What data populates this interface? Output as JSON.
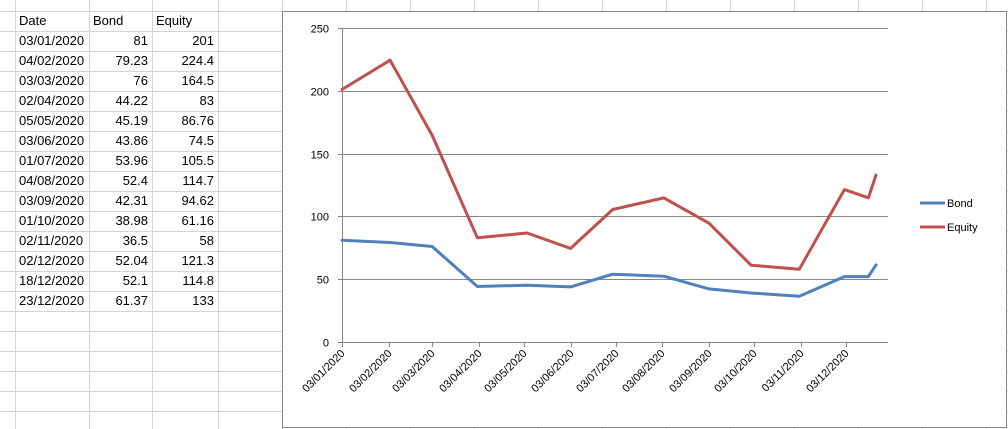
{
  "table": {
    "headers": [
      "Date",
      "Bond",
      "Equity"
    ],
    "rows": [
      [
        "03/01/2020",
        "81",
        "201"
      ],
      [
        "04/02/2020",
        "79.23",
        "224.4"
      ],
      [
        "03/03/2020",
        "76",
        "164.5"
      ],
      [
        "02/04/2020",
        "44.22",
        "83"
      ],
      [
        "05/05/2020",
        "45.19",
        "86.76"
      ],
      [
        "03/06/2020",
        "43.86",
        "74.5"
      ],
      [
        "01/07/2020",
        "53.96",
        "105.5"
      ],
      [
        "04/08/2020",
        "52.4",
        "114.7"
      ],
      [
        "03/09/2020",
        "42.31",
        "94.62"
      ],
      [
        "01/10/2020",
        "38.98",
        "61.16"
      ],
      [
        "02/11/2020",
        "36.5",
        "58"
      ],
      [
        "02/12/2020",
        "52.04",
        "121.3"
      ],
      [
        "18/12/2020",
        "52.1",
        "114.8"
      ],
      [
        "23/12/2020",
        "61.37",
        "133"
      ]
    ]
  },
  "chart_data": {
    "type": "line",
    "x": [
      "2020-01-03",
      "2020-02-04",
      "2020-03-03",
      "2020-04-02",
      "2020-05-05",
      "2020-06-03",
      "2020-07-01",
      "2020-08-04",
      "2020-09-03",
      "2020-10-01",
      "2020-11-02",
      "2020-12-02",
      "2020-12-18",
      "2020-12-23"
    ],
    "series": [
      {
        "name": "Bond",
        "color": "#4f81bd",
        "values": [
          81,
          79.23,
          76,
          44.22,
          45.19,
          43.86,
          53.96,
          52.4,
          42.31,
          38.98,
          36.5,
          52.04,
          52.1,
          61.37
        ]
      },
      {
        "name": "Equity",
        "color": "#c0504d",
        "values": [
          201,
          224.4,
          164.5,
          83,
          86.76,
          74.5,
          105.5,
          114.7,
          94.62,
          61.16,
          58,
          121.3,
          114.8,
          133
        ]
      }
    ],
    "ylim": [
      0,
      250
    ],
    "yticks": [
      "0",
      "50",
      "100",
      "150",
      "200",
      "250"
    ],
    "xticks": [
      "03/01/2020",
      "03/02/2020",
      "03/03/2020",
      "03/04/2020",
      "03/05/2020",
      "03/06/2020",
      "03/07/2020",
      "03/08/2020",
      "03/09/2020",
      "03/10/2020",
      "03/11/2020",
      "03/12/2020"
    ],
    "xtick_dates": [
      "2020-01-03",
      "2020-02-03",
      "2020-03-03",
      "2020-04-03",
      "2020-05-03",
      "2020-06-03",
      "2020-07-03",
      "2020-08-03",
      "2020-09-03",
      "2020-10-03",
      "2020-11-03",
      "2020-12-03"
    ],
    "xlim": [
      "2020-01-03",
      "2020-12-31"
    ],
    "grid": true,
    "legend": "right"
  }
}
